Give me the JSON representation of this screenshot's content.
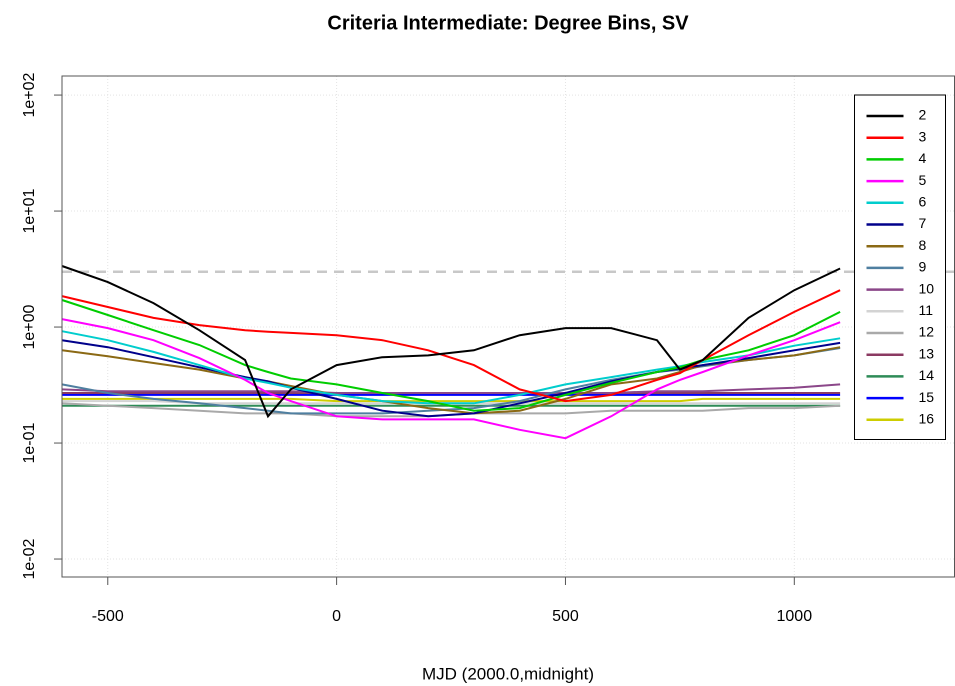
{
  "chart_data": {
    "type": "line",
    "title": "Criteria Intermediate: Degree Bins, SV",
    "x_label": "MJD (2000.0,midnight)",
    "log_y": true,
    "grid": true,
    "legend": "topright",
    "xlim": [
      -600,
      1350
    ],
    "xticks": [
      -500,
      0,
      500,
      1000
    ],
    "ylim": [
      0.007,
      146
    ],
    "yticks": [
      {
        "value": 0.01,
        "label": "1e-02"
      },
      {
        "value": 0.1,
        "label": "1e-01"
      },
      {
        "value": 1,
        "label": "1e+00"
      },
      {
        "value": 10,
        "label": "1e+01"
      },
      {
        "value": 100,
        "label": "1e+02"
      }
    ],
    "hline": 3,
    "x": [
      -600,
      -500,
      -400,
      -300,
      -200,
      -150,
      -100,
      0,
      100,
      200,
      300,
      400,
      500,
      600,
      700,
      750,
      800,
      900,
      1000,
      1100
    ],
    "series": [
      {
        "name": "2",
        "color": "#000000",
        "values": [
          3.36,
          2.44,
          1.61,
          0.94,
          0.52,
          0.17,
          0.29,
          0.47,
          0.55,
          0.57,
          0.63,
          0.85,
          0.98,
          0.98,
          0.77,
          0.43,
          0.52,
          1.2,
          2.08,
          3.2
        ]
      },
      {
        "name": "3",
        "color": "#ff0000",
        "values": [
          1.85,
          1.49,
          1.2,
          1.04,
          0.94,
          0.91,
          0.89,
          0.85,
          0.77,
          0.63,
          0.47,
          0.29,
          0.23,
          0.26,
          0.35,
          0.4,
          0.52,
          0.85,
          1.35,
          2.08
        ]
      },
      {
        "name": "4",
        "color": "#00cd00",
        "values": [
          1.71,
          1.27,
          0.94,
          0.7,
          0.47,
          0.41,
          0.36,
          0.32,
          0.27,
          0.23,
          0.19,
          0.2,
          0.26,
          0.33,
          0.41,
          0.45,
          0.52,
          0.63,
          0.85,
          1.35
        ]
      },
      {
        "name": "5",
        "color": "#ff00ff",
        "values": [
          1.17,
          0.98,
          0.77,
          0.54,
          0.35,
          0.27,
          0.23,
          0.17,
          0.16,
          0.16,
          0.16,
          0.13,
          0.11,
          0.17,
          0.29,
          0.35,
          0.41,
          0.57,
          0.77,
          1.1
        ]
      },
      {
        "name": "6",
        "color": "#00cdcd",
        "values": [
          0.92,
          0.77,
          0.61,
          0.47,
          0.36,
          0.33,
          0.3,
          0.26,
          0.23,
          0.22,
          0.22,
          0.26,
          0.32,
          0.37,
          0.43,
          0.46,
          0.5,
          0.57,
          0.69,
          0.8
        ]
      },
      {
        "name": "7",
        "color": "#00008b",
        "values": [
          0.77,
          0.67,
          0.55,
          0.45,
          0.37,
          0.34,
          0.3,
          0.24,
          0.19,
          0.17,
          0.18,
          0.22,
          0.27,
          0.34,
          0.41,
          0.44,
          0.47,
          0.54,
          0.63,
          0.73
        ]
      },
      {
        "name": "8",
        "color": "#8b6914",
        "values": [
          0.63,
          0.56,
          0.49,
          0.43,
          0.36,
          0.34,
          0.31,
          0.26,
          0.23,
          0.2,
          0.18,
          0.19,
          0.24,
          0.32,
          0.36,
          0.41,
          0.47,
          0.52,
          0.57,
          0.67
        ]
      },
      {
        "name": "9",
        "color": "#4f7fa0",
        "values": [
          0.32,
          0.27,
          0.24,
          0.22,
          0.2,
          0.19,
          0.18,
          0.18,
          0.18,
          0.19,
          0.2,
          0.23,
          0.29,
          0.35,
          0.41,
          0.43,
          0.46,
          0.52,
          0.57,
          0.66
        ]
      },
      {
        "name": "10",
        "color": "#8b4789",
        "values": [
          0.29,
          0.28,
          0.28,
          0.28,
          0.28,
          0.28,
          0.28,
          0.27,
          0.27,
          0.27,
          0.27,
          0.27,
          0.27,
          0.27,
          0.28,
          0.28,
          0.28,
          0.29,
          0.3,
          0.32
        ]
      },
      {
        "name": "11",
        "color": "#d3d3d3",
        "values": [
          0.23,
          0.23,
          0.23,
          0.22,
          0.22,
          0.22,
          0.22,
          0.22,
          0.22,
          0.22,
          0.22,
          0.22,
          0.22,
          0.22,
          0.22,
          0.22,
          0.22,
          0.22,
          0.22,
          0.22
        ]
      },
      {
        "name": "12",
        "color": "#a9a9a9",
        "values": [
          0.22,
          0.21,
          0.2,
          0.19,
          0.18,
          0.18,
          0.18,
          0.17,
          0.17,
          0.17,
          0.18,
          0.18,
          0.18,
          0.19,
          0.19,
          0.19,
          0.19,
          0.2,
          0.2,
          0.21
        ]
      },
      {
        "name": "13",
        "color": "#8b3a62",
        "values": [
          0.27,
          0.27,
          0.27,
          0.27,
          0.27,
          0.27,
          0.27,
          0.27,
          0.27,
          0.27,
          0.27,
          0.27,
          0.27,
          0.27,
          0.27,
          0.27,
          0.27,
          0.27,
          0.27,
          0.27
        ]
      },
      {
        "name": "14",
        "color": "#2e8b57",
        "values": [
          0.21,
          0.21,
          0.21,
          0.21,
          0.21,
          0.21,
          0.21,
          0.21,
          0.21,
          0.21,
          0.21,
          0.21,
          0.21,
          0.21,
          0.21,
          0.21,
          0.21,
          0.21,
          0.21,
          0.21
        ]
      },
      {
        "name": "15",
        "color": "#0000ff",
        "values": [
          0.26,
          0.26,
          0.26,
          0.26,
          0.26,
          0.26,
          0.26,
          0.26,
          0.26,
          0.26,
          0.26,
          0.26,
          0.26,
          0.26,
          0.26,
          0.26,
          0.26,
          0.26,
          0.26,
          0.26
        ]
      },
      {
        "name": "16",
        "color": "#cdcd00",
        "values": [
          0.24,
          0.24,
          0.24,
          0.24,
          0.24,
          0.24,
          0.24,
          0.23,
          0.23,
          0.23,
          0.23,
          0.23,
          0.23,
          0.23,
          0.23,
          0.23,
          0.24,
          0.24,
          0.24,
          0.24
        ]
      }
    ]
  }
}
